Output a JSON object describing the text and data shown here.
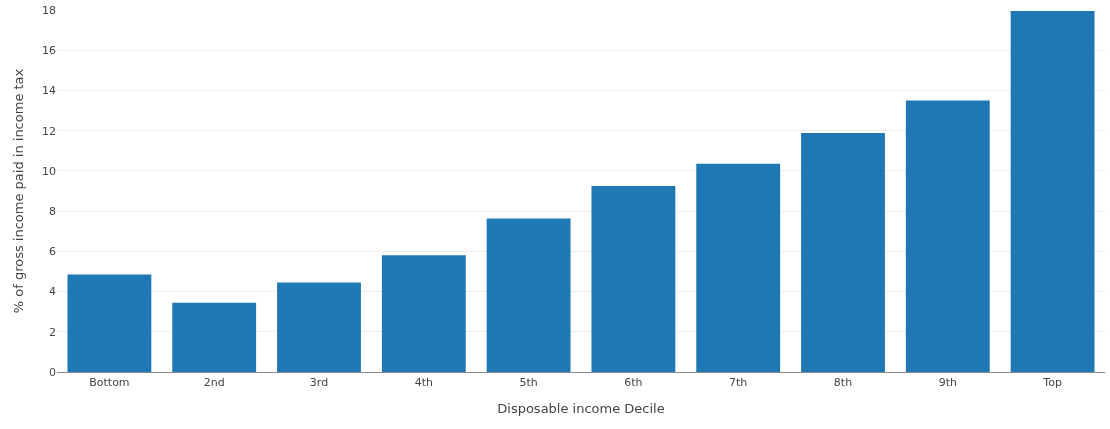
{
  "chart_data": {
    "type": "bar",
    "xlabel": "Disposable income Decile",
    "ylabel": "% of gross income paid in income tax",
    "categories": [
      "Bottom",
      "2nd",
      "3rd",
      "4th",
      "5th",
      "6th",
      "7th",
      "8th",
      "9th",
      "Top"
    ],
    "values": [
      4.85,
      3.44,
      4.45,
      5.81,
      7.63,
      9.25,
      10.36,
      11.88,
      13.5,
      17.95
    ],
    "color": "#1f77b4",
    "ylim": [
      0,
      18
    ],
    "yticks": [
      0,
      2,
      4,
      6,
      8,
      10,
      12,
      14,
      16,
      18
    ],
    "grid": "y"
  }
}
